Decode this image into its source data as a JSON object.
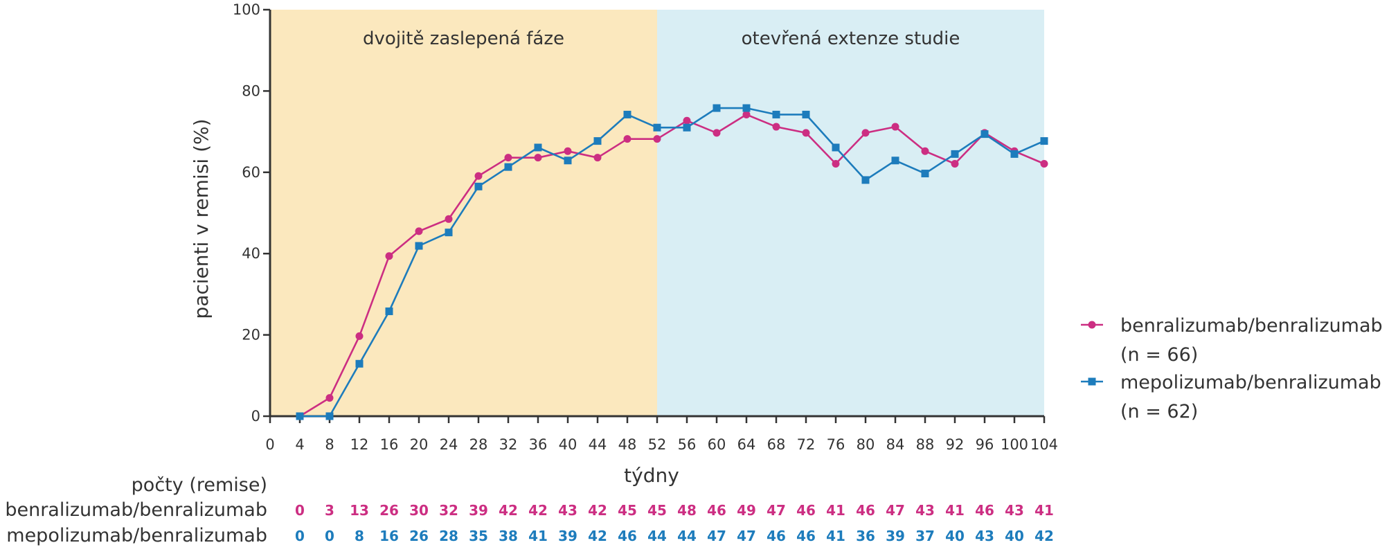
{
  "chart_data": {
    "type": "line",
    "xlabel": "týdny",
    "ylabel": "pacienti v remisi (%)",
    "xlim": [
      0,
      104
    ],
    "ylim": [
      0,
      100
    ],
    "x_ticks": [
      0,
      4,
      8,
      12,
      16,
      20,
      24,
      28,
      32,
      36,
      40,
      44,
      48,
      52,
      56,
      60,
      64,
      68,
      72,
      76,
      80,
      84,
      88,
      92,
      96,
      100,
      104
    ],
    "y_ticks": [
      0,
      20,
      40,
      60,
      80,
      100
    ],
    "phases": [
      {
        "label": "dvojitě zaslepená fáze",
        "x_start": 0,
        "x_end": 52,
        "color": "#fbe8be"
      },
      {
        "label": "otevřená extenze studie",
        "x_start": 52,
        "x_end": 104,
        "color": "#d9eef4"
      }
    ],
    "x": [
      4,
      8,
      12,
      16,
      20,
      24,
      28,
      32,
      36,
      40,
      44,
      48,
      52,
      56,
      60,
      64,
      68,
      72,
      76,
      80,
      84,
      88,
      92,
      96,
      100,
      104
    ],
    "series": [
      {
        "name": "benralizumab/benralizumab",
        "legend_line1": "benralizumab/benralizumab",
        "legend_line2": "(n = 66)",
        "color": "#cc2e82",
        "marker": "circle",
        "values": [
          0,
          4.5,
          19.7,
          39.4,
          45.5,
          48.5,
          59.1,
          63.6,
          63.6,
          65.2,
          63.6,
          68.2,
          68.2,
          72.7,
          69.7,
          74.2,
          71.2,
          69.7,
          62.1,
          69.7,
          71.2,
          65.2,
          62.1,
          69.7,
          65.2,
          62.1
        ],
        "counts": [
          0,
          3,
          13,
          26,
          30,
          32,
          39,
          42,
          42,
          43,
          42,
          45,
          45,
          48,
          46,
          49,
          47,
          46,
          41,
          46,
          47,
          43,
          41,
          46,
          43,
          41
        ]
      },
      {
        "name": "mepolizumab/benralizumab",
        "legend_line1": "mepolizumab/benralizumab",
        "legend_line2": "(n = 62)",
        "color": "#1d7cbc",
        "marker": "square",
        "values": [
          0,
          0,
          12.9,
          25.8,
          41.9,
          45.2,
          56.5,
          61.3,
          66.1,
          62.9,
          67.7,
          74.2,
          71.0,
          71.0,
          75.8,
          75.8,
          74.2,
          74.2,
          66.1,
          58.1,
          62.9,
          59.7,
          64.5,
          69.4,
          64.5,
          67.7
        ],
        "counts": [
          0,
          0,
          8,
          16,
          26,
          28,
          35,
          38,
          41,
          39,
          42,
          46,
          44,
          44,
          47,
          47,
          46,
          46,
          41,
          36,
          39,
          37,
          40,
          43,
          40,
          42
        ]
      }
    ],
    "counts_title": "počty (remise)"
  }
}
